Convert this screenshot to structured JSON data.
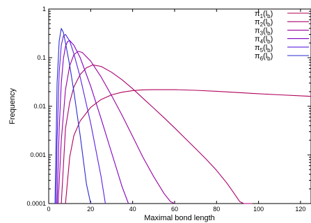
{
  "chart_data": {
    "type": "line",
    "title": "",
    "xlabel": "Maximal bond length",
    "ylabel": "Frequency",
    "xlim": [
      0,
      125
    ],
    "ylim": [
      0.0001,
      1
    ],
    "yscale": "log",
    "grid": false,
    "legend_position": "top-right",
    "x_ticks": [
      "0",
      "20",
      "40",
      "60",
      "80",
      "100",
      "120"
    ],
    "x_tick_values": [
      0,
      20,
      40,
      60,
      80,
      100,
      120
    ],
    "y_ticks": [
      "0.0001",
      "0.001",
      "0.01",
      "0.1",
      "1"
    ],
    "y_tick_values": [
      0.0001,
      0.001,
      0.01,
      0.1,
      1
    ],
    "series": [
      {
        "name": "π1(lb)",
        "legend_main": "π",
        "legend_index": "1",
        "legend_arg": "l",
        "legend_arg_sub": "b",
        "color": "#b0005a",
        "x": [
          8,
          10,
          12,
          15,
          20,
          25,
          30,
          35,
          40,
          45,
          50,
          60,
          70,
          80,
          90,
          100,
          110,
          120,
          125
        ],
        "y": [
          0.0001,
          0.0009,
          0.0025,
          0.005,
          0.0095,
          0.0138,
          0.0172,
          0.0195,
          0.021,
          0.0218,
          0.022,
          0.022,
          0.0213,
          0.0203,
          0.0192,
          0.0181,
          0.0172,
          0.0164,
          0.016
        ]
      },
      {
        "name": "π2(lb)",
        "legend_main": "π",
        "legend_index": "2",
        "legend_arg": "l",
        "legend_arg_sub": "b",
        "color": "#a8006e",
        "x": [
          6,
          8,
          10,
          12,
          15,
          18,
          21,
          25,
          30,
          35,
          40,
          45,
          50,
          55,
          60,
          65,
          70,
          75,
          80,
          85,
          88,
          91,
          93,
          95,
          97
        ],
        "y": [
          0.0001,
          0.0035,
          0.012,
          0.025,
          0.045,
          0.062,
          0.071,
          0.066,
          0.05,
          0.035,
          0.023,
          0.0145,
          0.0092,
          0.0058,
          0.0036,
          0.0022,
          0.00135,
          0.00082,
          0.00048,
          0.00026,
          0.00017,
          0.00011,
          8e-05,
          8e-05,
          0.0001
        ]
      },
      {
        "name": "π3(lb)",
        "legend_main": "π",
        "legend_index": "3",
        "legend_arg": "l",
        "legend_arg_sub": "b",
        "color": "#9a00a0",
        "x": [
          4.5,
          6,
          8,
          10,
          12,
          14,
          16,
          20,
          25,
          30,
          35,
          40,
          45,
          50,
          55,
          58,
          60
        ],
        "y": [
          0.0001,
          0.002,
          0.022,
          0.068,
          0.115,
          0.135,
          0.128,
          0.085,
          0.04,
          0.0165,
          0.0065,
          0.0024,
          0.00088,
          0.00036,
          0.00016,
          0.00011,
          0.0001
        ]
      },
      {
        "name": "π4(lb)",
        "legend_main": "π",
        "legend_index": "4",
        "legend_arg": "l",
        "legend_arg_sub": "b",
        "color": "#8000c0",
        "x": [
          4,
          5,
          6,
          7,
          8,
          9,
          10,
          12,
          15,
          20,
          25,
          30,
          35,
          38
        ],
        "y": [
          0.0001,
          0.0035,
          0.03,
          0.095,
          0.17,
          0.215,
          0.225,
          0.18,
          0.1,
          0.026,
          0.0055,
          0.0011,
          0.00022,
          0.0001
        ]
      },
      {
        "name": "π5(lb)",
        "legend_main": "π",
        "legend_index": "5",
        "legend_arg": "l",
        "legend_arg_sub": "b",
        "color": "#5a1ee0",
        "x": [
          3.5,
          4,
          5,
          6,
          7,
          8,
          10,
          12,
          15,
          20,
          25,
          27
        ],
        "y": [
          0.0001,
          0.002,
          0.05,
          0.18,
          0.28,
          0.3,
          0.22,
          0.12,
          0.04,
          0.0045,
          0.00035,
          0.0001
        ]
      },
      {
        "name": "π6(lb)",
        "legend_main": "π",
        "legend_index": "6",
        "legend_arg": "l",
        "legend_arg_sub": "b",
        "color": "#2a2ad0",
        "x": [
          3,
          3.5,
          4,
          5,
          6,
          7,
          8,
          10,
          12,
          15,
          18,
          20
        ],
        "y": [
          0.0001,
          0.0015,
          0.03,
          0.22,
          0.4,
          0.33,
          0.2,
          0.07,
          0.02,
          0.0025,
          0.00025,
          0.0001
        ]
      }
    ]
  }
}
